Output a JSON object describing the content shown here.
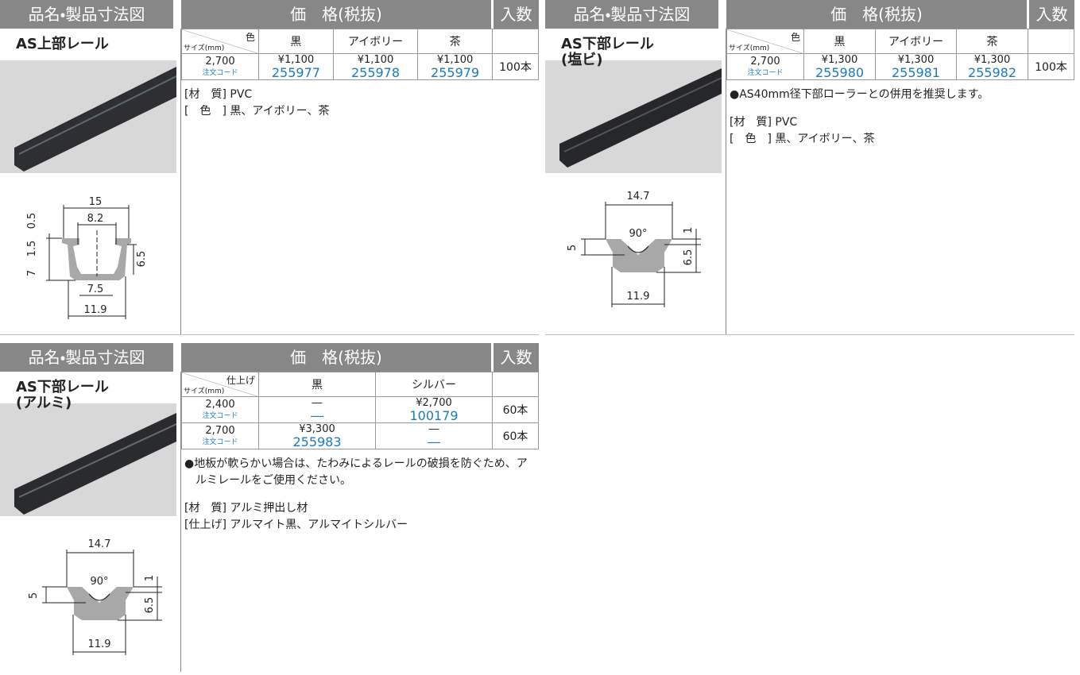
{
  "header": {
    "product": "品名・製品寸法図",
    "price": "価　格(税抜)",
    "qty": "入数"
  },
  "sections": [
    {
      "name": [
        "AS上部レール"
      ],
      "table": {
        "corner_top": "色",
        "corner_bottom": "サイズ(mm)",
        "columns": [
          "黒",
          "アイボリー",
          "茶"
        ],
        "rows": [
          {
            "size": "2,700",
            "code_label": "注文コード",
            "prices": [
              "¥1,100",
              "¥1,100",
              "¥1,100"
            ],
            "codes": [
              "255977",
              "255978",
              "255979"
            ],
            "qty": "100本"
          }
        ]
      },
      "bullets": [],
      "notes": [
        "[材　質] PVC",
        "[　色　] 黒、アイボリー、茶"
      ],
      "dimensions": [
        "15",
        "8.2",
        "0.5",
        "1.5",
        "7",
        "6.5",
        "7.5",
        "11.9"
      ]
    },
    {
      "name": [
        "AS下部レール",
        "(塩ビ)"
      ],
      "table": {
        "corner_top": "色",
        "corner_bottom": "サイズ(mm)",
        "columns": [
          "黒",
          "アイボリー",
          "茶"
        ],
        "rows": [
          {
            "size": "2,700",
            "code_label": "注文コード",
            "prices": [
              "¥1,300",
              "¥1,300",
              "¥1,300"
            ],
            "codes": [
              "255980",
              "255981",
              "255982"
            ],
            "qty": "100本"
          }
        ]
      },
      "bullets": [
        "●AS40mm径下部ローラーとの併用を推奨します。"
      ],
      "notes": [
        "[材　質] PVC",
        "[　色　] 黒、アイボリー、茶"
      ],
      "dimensions": [
        "14.7",
        "90°",
        "5",
        "1",
        "6.5",
        "11.9"
      ]
    },
    {
      "name": [
        "AS下部レール",
        "(アルミ)"
      ],
      "table": {
        "corner_top": "仕上げ",
        "corner_bottom": "サイズ(mm)",
        "columns": [
          "黒",
          "シルバー"
        ],
        "rows": [
          {
            "size": "2,400",
            "code_label": "注文コード",
            "prices": [
              "―",
              "¥2,700"
            ],
            "codes": [
              "―",
              "100179"
            ],
            "qty": "60本"
          },
          {
            "size": "2,700",
            "code_label": "注文コード",
            "prices": [
              "¥3,300",
              "―"
            ],
            "codes": [
              "255983",
              "―"
            ],
            "qty": "60本"
          }
        ]
      },
      "bullets": [
        "●地板が軟らかい場合は、たわみによるレールの破損を防ぐため、アルミレールをご使用ください。"
      ],
      "notes": [
        "[材　質] アルミ押出し材",
        "[仕上げ] アルマイト黒、アルマイトシルバー"
      ],
      "dimensions": [
        "14.7",
        "90°",
        "5",
        "1",
        "6.5",
        "11.9"
      ]
    }
  ]
}
